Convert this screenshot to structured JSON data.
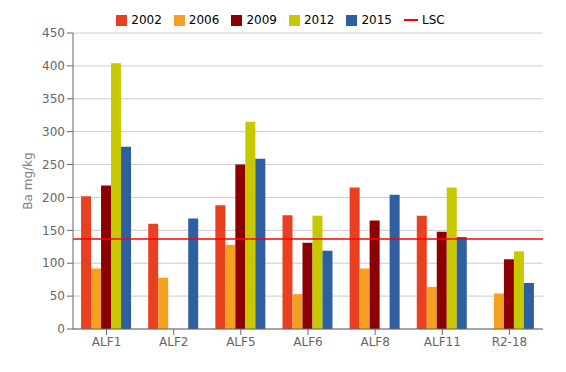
{
  "chart_data": {
    "type": "bar",
    "ylabel": "Ba mg/kg",
    "categories": [
      "ALF1",
      "ALF2",
      "ALF5",
      "ALF6",
      "ALF8",
      "ALF11",
      "R2-18"
    ],
    "series": [
      {
        "name": "2002",
        "color": "#E84020",
        "values": [
          202,
          160,
          188,
          173,
          215,
          172,
          null
        ]
      },
      {
        "name": "2006",
        "color": "#F5A020",
        "values": [
          92,
          78,
          128,
          53,
          92,
          64,
          54
        ]
      },
      {
        "name": "2009",
        "color": "#8B0000",
        "values": [
          218,
          null,
          250,
          131,
          165,
          148,
          106
        ]
      },
      {
        "name": "2012",
        "color": "#C8C800",
        "values": [
          404,
          null,
          315,
          172,
          null,
          215,
          118
        ]
      },
      {
        "name": "2015",
        "color": "#2E5FA0",
        "values": [
          277,
          168,
          259,
          119,
          204,
          140,
          70
        ]
      }
    ],
    "reference_lines": [
      {
        "name": "LSC",
        "value": 137,
        "color": "#FF0000"
      }
    ],
    "ylim": [
      0,
      450
    ],
    "yticks": [
      0,
      50,
      100,
      150,
      200,
      250,
      300,
      350,
      400,
      450
    ],
    "grid": true,
    "legend": "top"
  }
}
